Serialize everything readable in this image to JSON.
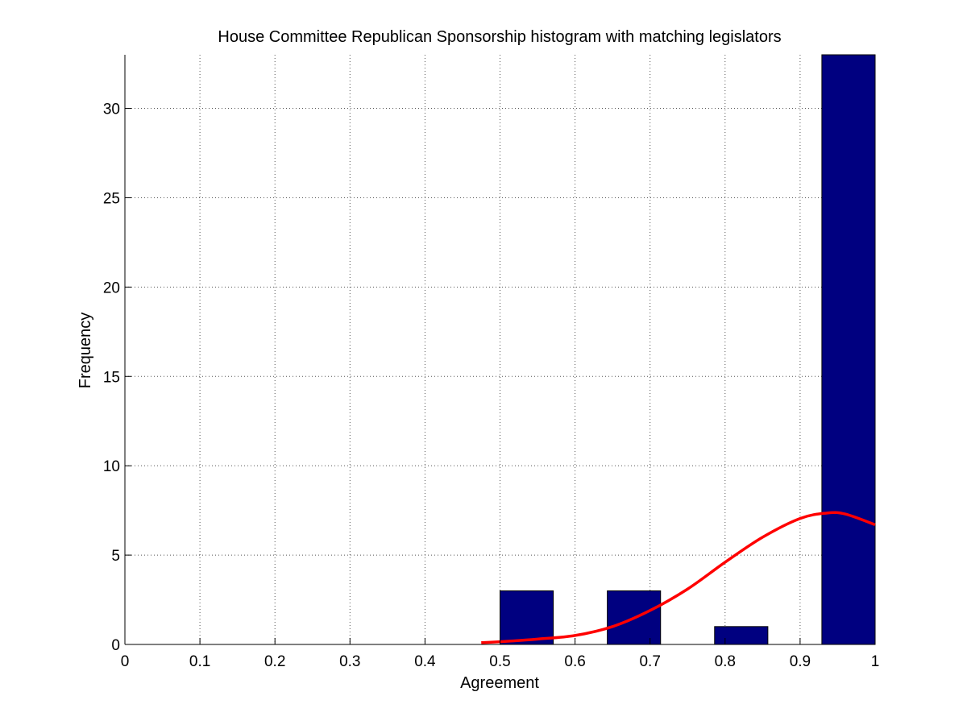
{
  "chart_data": {
    "type": "bar",
    "title": "House Committee Republican Sponsorship histogram with matching legislators",
    "xlabel": "Agreement",
    "ylabel": "Frequency",
    "xlim": [
      0,
      1
    ],
    "ylim": [
      0,
      33
    ],
    "xticks": [
      "0",
      "0.1",
      "0.2",
      "0.3",
      "0.4",
      "0.5",
      "0.6",
      "0.7",
      "0.8",
      "0.9",
      "1"
    ],
    "yticks": [
      "0",
      "5",
      "10",
      "15",
      "20",
      "25",
      "30"
    ],
    "grid": true,
    "bar_color": "#000080",
    "bins": [
      {
        "start": 0.5,
        "end": 0.571,
        "value": 3
      },
      {
        "start": 0.643,
        "end": 0.714,
        "value": 3
      },
      {
        "start": 0.786,
        "end": 0.857,
        "value": 1
      },
      {
        "start": 0.929,
        "end": 1.0,
        "value": 33
      }
    ],
    "fit_curve": {
      "color": "#ff0000",
      "points": [
        [
          0.475,
          0.1
        ],
        [
          0.5,
          0.15
        ],
        [
          0.55,
          0.3
        ],
        [
          0.6,
          0.5
        ],
        [
          0.65,
          1.0
        ],
        [
          0.7,
          1.9
        ],
        [
          0.75,
          3.1
        ],
        [
          0.8,
          4.6
        ],
        [
          0.85,
          6.0
        ],
        [
          0.9,
          7.05
        ],
        [
          0.935,
          7.35
        ],
        [
          0.96,
          7.3
        ],
        [
          1.0,
          6.7
        ]
      ]
    }
  }
}
